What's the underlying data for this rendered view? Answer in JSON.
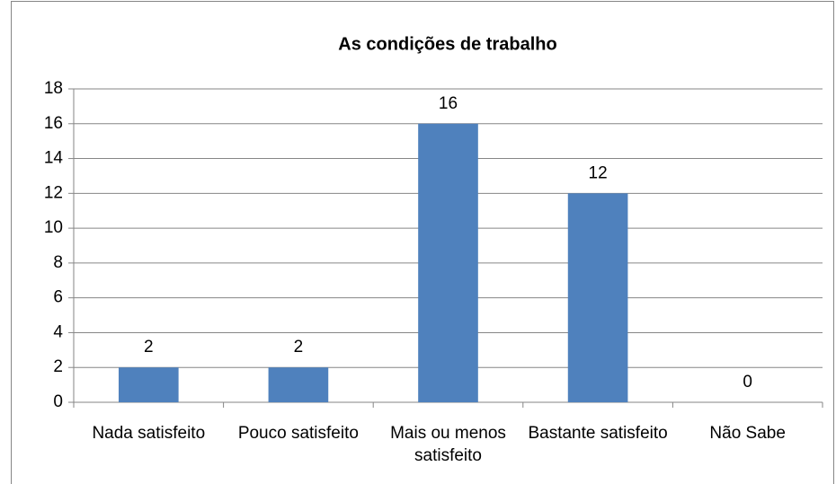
{
  "chart_data": {
    "type": "bar",
    "title": "As condições de trabalho",
    "categories": [
      "Nada satisfeito",
      "Pouco satisfeito",
      "Mais ou menos satisfeito",
      "Bastante satisfeito",
      "Não Sabe"
    ],
    "values": [
      2,
      2,
      16,
      12,
      0
    ],
    "color": "#4f81bd",
    "ylim": [
      0,
      18
    ],
    "yticks": [
      0,
      2,
      4,
      6,
      8,
      10,
      12,
      14,
      16,
      18
    ],
    "grid": true
  }
}
